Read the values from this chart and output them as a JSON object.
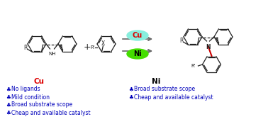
{
  "bg_color": "#ffffff",
  "cu_label": "Cu",
  "ni_label": "Ni",
  "cu_color": "#dd0000",
  "ni_color": "#000000",
  "bullet_color": "#0000bb",
  "bullet_symbol": "♣",
  "cu_items": [
    "No ligands",
    "Mild condition",
    "Broad substrate scope",
    "Cheap and available catalyst"
  ],
  "ni_items": [
    "Broad substrate scope",
    "Cheap and available catalyst"
  ],
  "cu_ellipse_color": "#88eedd",
  "ni_ellipse_color": "#44dd00",
  "arrow_color": "#666666",
  "bond_color": "#222222",
  "red_bond_color": "#cc0000",
  "r_hex": 13,
  "lw": 0.9
}
